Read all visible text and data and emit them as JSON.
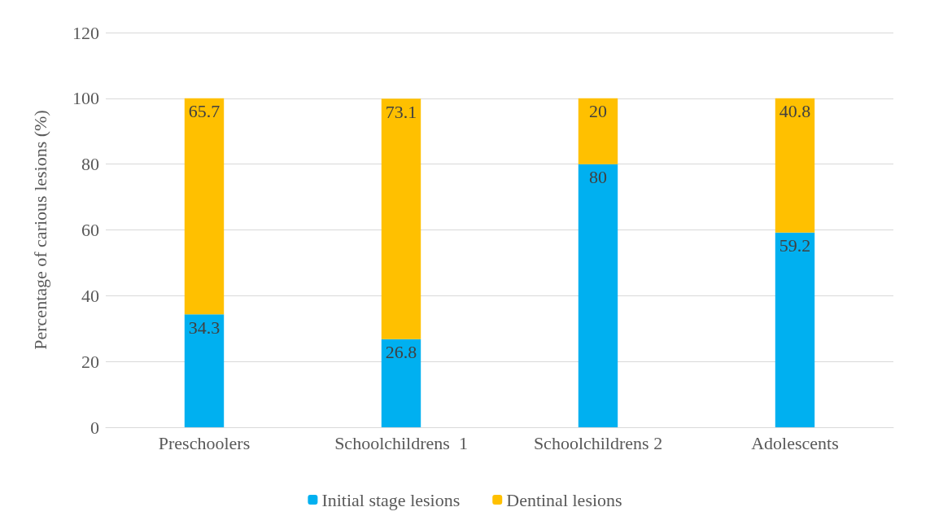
{
  "chart_data": {
    "type": "bar",
    "stacked": true,
    "ylabel": "Percentage of carious lesions (%)",
    "categories": [
      "Preschoolers",
      "Schoolchildrens  1",
      "Schoolchildrens 2",
      "Adolescents"
    ],
    "series": [
      {
        "name": "Initial stage lesions",
        "color": "#00b0f0",
        "values": [
          34.3,
          26.8,
          80,
          59.2
        ]
      },
      {
        "name": "Dentinal lesions",
        "color": "#ffc000",
        "values": [
          65.7,
          73.1,
          20,
          40.8
        ]
      }
    ],
    "ylim": [
      0,
      120
    ],
    "yticks": [
      0,
      20,
      40,
      60,
      80,
      100,
      120
    ],
    "grid": "y",
    "legend": "bottom",
    "data_labels": true
  }
}
